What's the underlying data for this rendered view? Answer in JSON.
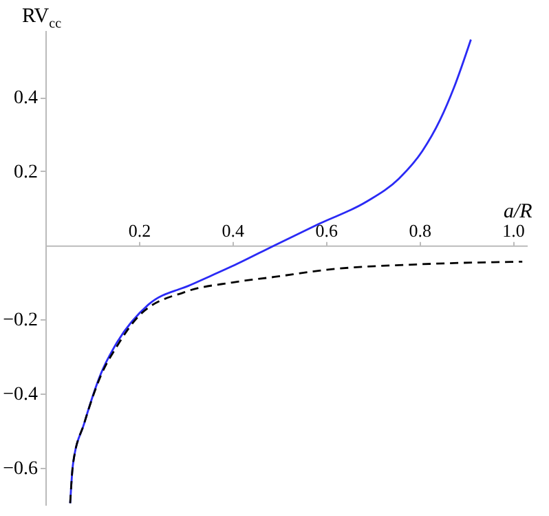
{
  "chart_data": {
    "type": "line",
    "xlabel": "a/R",
    "ylabel": "RV$_{cc}$",
    "xlim": [
      0,
      1.03
    ],
    "ylim": [
      -0.7,
      0.58
    ],
    "xticks": [
      0.2,
      0.4,
      0.6,
      0.8,
      {
        "value": 1.0,
        "label": "1.0"
      }
    ],
    "yticks": [
      -0.6,
      -0.4,
      -0.2,
      0.2,
      0.4
    ],
    "grid": false,
    "legend": false,
    "marker": "none",
    "series": [
      {
        "color": "#2a2af5",
        "line_style": "solid",
        "x": [
          0.053,
          0.059,
          0.083,
          0.119,
          0.154,
          0.22,
          0.31,
          0.41,
          0.49,
          0.587,
          0.687,
          0.756,
          0.806,
          0.844,
          0.874,
          0.91
        ],
        "values": [
          -0.695,
          -0.59,
          -0.48,
          -0.345,
          -0.26,
          -0.16,
          -0.107,
          -0.05,
          0,
          0.059,
          0.118,
          0.18,
          0.254,
          0.338,
          0.426,
          0.555
        ]
      },
      {
        "color": "#000000",
        "line_style": "dashed",
        "x": [
          0.053,
          0.059,
          0.083,
          0.119,
          0.154,
          0.2,
          0.3,
          0.4,
          0.49,
          0.6,
          0.8,
          1.02
        ],
        "values": [
          -0.695,
          -0.59,
          -0.48,
          -0.35,
          -0.27,
          -0.19,
          -0.125,
          -0.1,
          -0.085,
          -0.066,
          -0.051,
          -0.044
        ]
      }
    ]
  }
}
